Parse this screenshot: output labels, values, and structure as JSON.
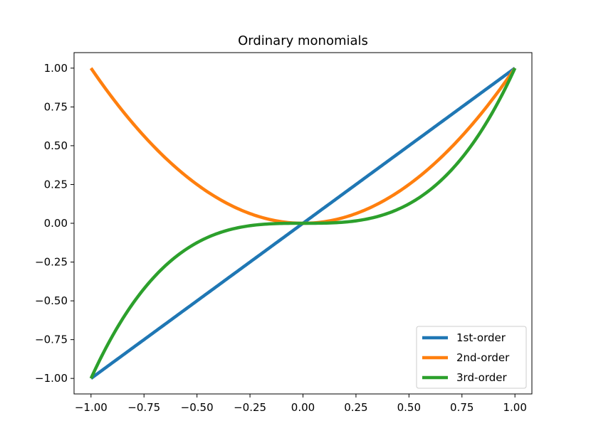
{
  "chart_data": {
    "type": "line",
    "title": "Ordinary monomials",
    "xlabel": "",
    "ylabel": "",
    "xlim": [
      -1.08,
      1.08
    ],
    "ylim": [
      -1.1,
      1.1
    ],
    "xticks": [
      -1.0,
      -0.75,
      -0.5,
      -0.25,
      0.0,
      0.25,
      0.5,
      0.75,
      1.0
    ],
    "xtick_labels": [
      "−1.00",
      "−0.75",
      "−0.50",
      "−0.25",
      "0.00",
      "0.25",
      "0.50",
      "0.75",
      "1.00"
    ],
    "yticks": [
      1.0,
      0.75,
      0.5,
      0.25,
      0.0,
      -0.25,
      -0.5,
      -0.75,
      -1.0
    ],
    "ytick_labels": [
      "1.00",
      "0.75",
      "0.50",
      "0.25",
      "0.00",
      "−0.25",
      "−0.50",
      "−0.75",
      "−1.00"
    ],
    "grid": false,
    "legend_position": "lower-right",
    "x": [
      -1.0,
      -0.9,
      -0.8,
      -0.7,
      -0.6,
      -0.5,
      -0.4,
      -0.3,
      -0.2,
      -0.1,
      0.0,
      0.1,
      0.2,
      0.3,
      0.4,
      0.5,
      0.6,
      0.7,
      0.8,
      0.9,
      1.0
    ],
    "series": [
      {
        "name": "1st-order",
        "color": "#1f77b4",
        "values": [
          -1.0,
          -0.9,
          -0.8,
          -0.7,
          -0.6,
          -0.5,
          -0.4,
          -0.3,
          -0.2,
          -0.1,
          0.0,
          0.1,
          0.2,
          0.3,
          0.4,
          0.5,
          0.6,
          0.7,
          0.8,
          0.9,
          1.0
        ]
      },
      {
        "name": "2nd-order",
        "color": "#ff7f0e",
        "values": [
          1.0,
          0.81,
          0.64,
          0.49,
          0.36,
          0.25,
          0.16,
          0.09,
          0.04,
          0.01,
          0.0,
          0.01,
          0.04,
          0.09,
          0.16,
          0.25,
          0.36,
          0.49,
          0.64,
          0.81,
          1.0
        ]
      },
      {
        "name": "3rd-order",
        "color": "#2ca02c",
        "values": [
          -1.0,
          -0.729,
          -0.512,
          -0.343,
          -0.216,
          -0.125,
          -0.064,
          -0.027,
          -0.008,
          -0.001,
          0.0,
          0.001,
          0.008,
          0.027,
          0.064,
          0.125,
          0.216,
          0.343,
          0.512,
          0.729,
          1.0
        ]
      }
    ]
  }
}
